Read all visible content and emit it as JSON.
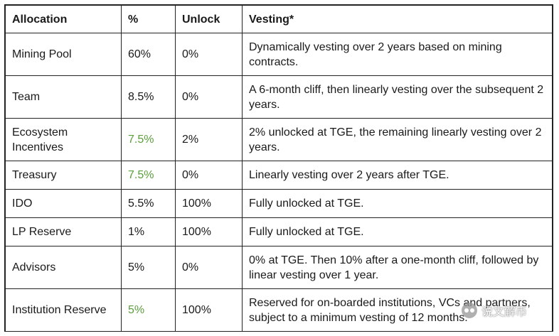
{
  "table": {
    "headers": [
      "Allocation",
      "%",
      "Unlock",
      "Vesting*"
    ],
    "rows": [
      {
        "allocation": "Mining Pool",
        "percent": "60%",
        "unlock": "0%",
        "vesting": "Dynamically vesting over 2 years based on mining contracts."
      },
      {
        "allocation": "Team",
        "percent": "8.5%",
        "unlock": "0%",
        "vesting": "A 6-month cliff, then linearly vesting over the subsequent 2 years."
      },
      {
        "allocation": "Ecosystem Incentives",
        "percent": "7.5%",
        "unlock": "2%",
        "vesting": "2% unlocked at TGE, the remaining linearly vesting over 2 years."
      },
      {
        "allocation": "Treasury",
        "percent": "7.5%",
        "unlock": "0%",
        "vesting": "Linearly vesting over 2 years after TGE."
      },
      {
        "allocation": "IDO",
        "percent": "5.5%",
        "unlock": "100%",
        "vesting": "Fully unlocked at TGE."
      },
      {
        "allocation": "LP Reserve",
        "percent": "1%",
        "unlock": "100%",
        "vesting": "Fully unlocked at TGE."
      },
      {
        "allocation": "Advisors",
        "percent": "5%",
        "unlock": "0%",
        "vesting": "0% at TGE. Then 10% after a one-month cliff, followed by linear vesting over 1 year."
      },
      {
        "allocation": "Institution Reserve",
        "percent": "5%",
        "unlock": "100%",
        "vesting": "Reserved for on-boarded institutions, VCs and partners, subject to a minimum vesting of 12 months."
      }
    ],
    "highlight_color": "#5a9e3b"
  },
  "watermark": {
    "text": "说文解币",
    "icon": "wechat-icon"
  }
}
